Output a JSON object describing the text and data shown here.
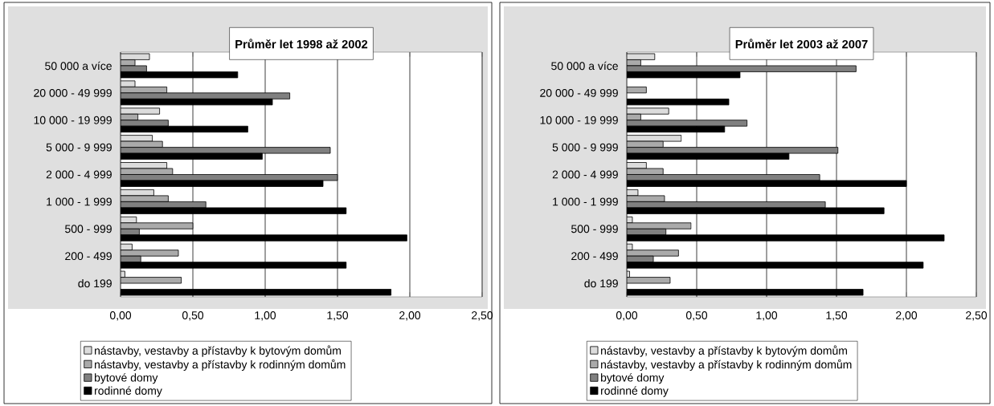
{
  "chart_data": [
    {
      "type": "bar",
      "orientation": "horizontal",
      "title": "Průměr let 1998 až 2002",
      "categories": [
        "50 000 a více",
        "20 000 - 49 999",
        "10 000 - 19 999",
        "5 000 - 9 999",
        "2 000 - 4 999",
        "1 000 - 1 999",
        "500 - 999",
        "200 - 499",
        "do 199"
      ],
      "series": [
        {
          "name": "nástavby, vestavby a přístavby k bytovým domům",
          "color": "#dcdcdc",
          "values": [
            0.2,
            0.1,
            0.27,
            0.22,
            0.32,
            0.23,
            0.11,
            0.08,
            0.03
          ]
        },
        {
          "name": "nástavby, vestavby a přístavby k rodinným domům",
          "color": "#aaaaaa",
          "values": [
            0.1,
            0.32,
            0.12,
            0.29,
            0.36,
            0.33,
            0.5,
            0.4,
            0.42
          ]
        },
        {
          "name": "bytové domy",
          "color": "#808080",
          "values": [
            0.18,
            1.17,
            0.33,
            1.45,
            1.5,
            0.59,
            0.13,
            0.14,
            null
          ]
        },
        {
          "name": "rodinné domy",
          "color": "#000000",
          "values": [
            0.81,
            1.05,
            0.88,
            0.98,
            1.4,
            1.56,
            1.98,
            1.56,
            1.87
          ]
        }
      ],
      "xlim": [
        0,
        2.5
      ],
      "xticks": [
        {
          "value": 0,
          "label": "0,00"
        },
        {
          "value": 0.5,
          "label": "0,50"
        },
        {
          "value": 1,
          "label": "1,00"
        },
        {
          "value": 1.5,
          "label": "1,50"
        },
        {
          "value": 2,
          "label": "2,00"
        },
        {
          "value": 2.5,
          "label": "2,50"
        }
      ],
      "grid": "x",
      "legend": "bottom"
    },
    {
      "type": "bar",
      "orientation": "horizontal",
      "title": "Průměr let 2003 až 2007",
      "categories": [
        "50 000 a více",
        "20 000 - 49 999",
        "10 000 - 19 999",
        "5 000 - 9 999",
        "2 000 - 4 999",
        "1 000 - 1 999",
        "500 - 999",
        "200 - 499",
        "do 199"
      ],
      "series": [
        {
          "name": "nástavby, vestavby a přístavby k bytovým domům",
          "color": "#dcdcdc",
          "values": [
            0.2,
            null,
            0.3,
            0.39,
            0.14,
            0.08,
            0.04,
            0.04,
            0.02
          ]
        },
        {
          "name": "nástavby, vestavby a přístavby k rodinným domům",
          "color": "#aaaaaa",
          "values": [
            0.1,
            0.14,
            0.1,
            0.26,
            0.26,
            0.27,
            0.46,
            0.37,
            0.31
          ]
        },
        {
          "name": "bytové domy",
          "color": "#808080",
          "values": [
            1.64,
            null,
            0.86,
            1.51,
            1.38,
            1.42,
            0.28,
            0.19,
            null
          ]
        },
        {
          "name": "rodinné domy",
          "color": "#000000",
          "values": [
            0.81,
            0.73,
            0.7,
            1.16,
            2.0,
            1.84,
            2.27,
            2.12,
            1.69
          ]
        }
      ],
      "xlim": [
        0,
        2.5
      ],
      "xticks": [
        {
          "value": 0,
          "label": "0,00"
        },
        {
          "value": 0.5,
          "label": "0,50"
        },
        {
          "value": 1,
          "label": "1,00"
        },
        {
          "value": 1.5,
          "label": "1,50"
        },
        {
          "value": 2,
          "label": "2,00"
        },
        {
          "value": 2.5,
          "label": "2,50"
        }
      ],
      "grid": "x",
      "legend": "bottom"
    }
  ]
}
